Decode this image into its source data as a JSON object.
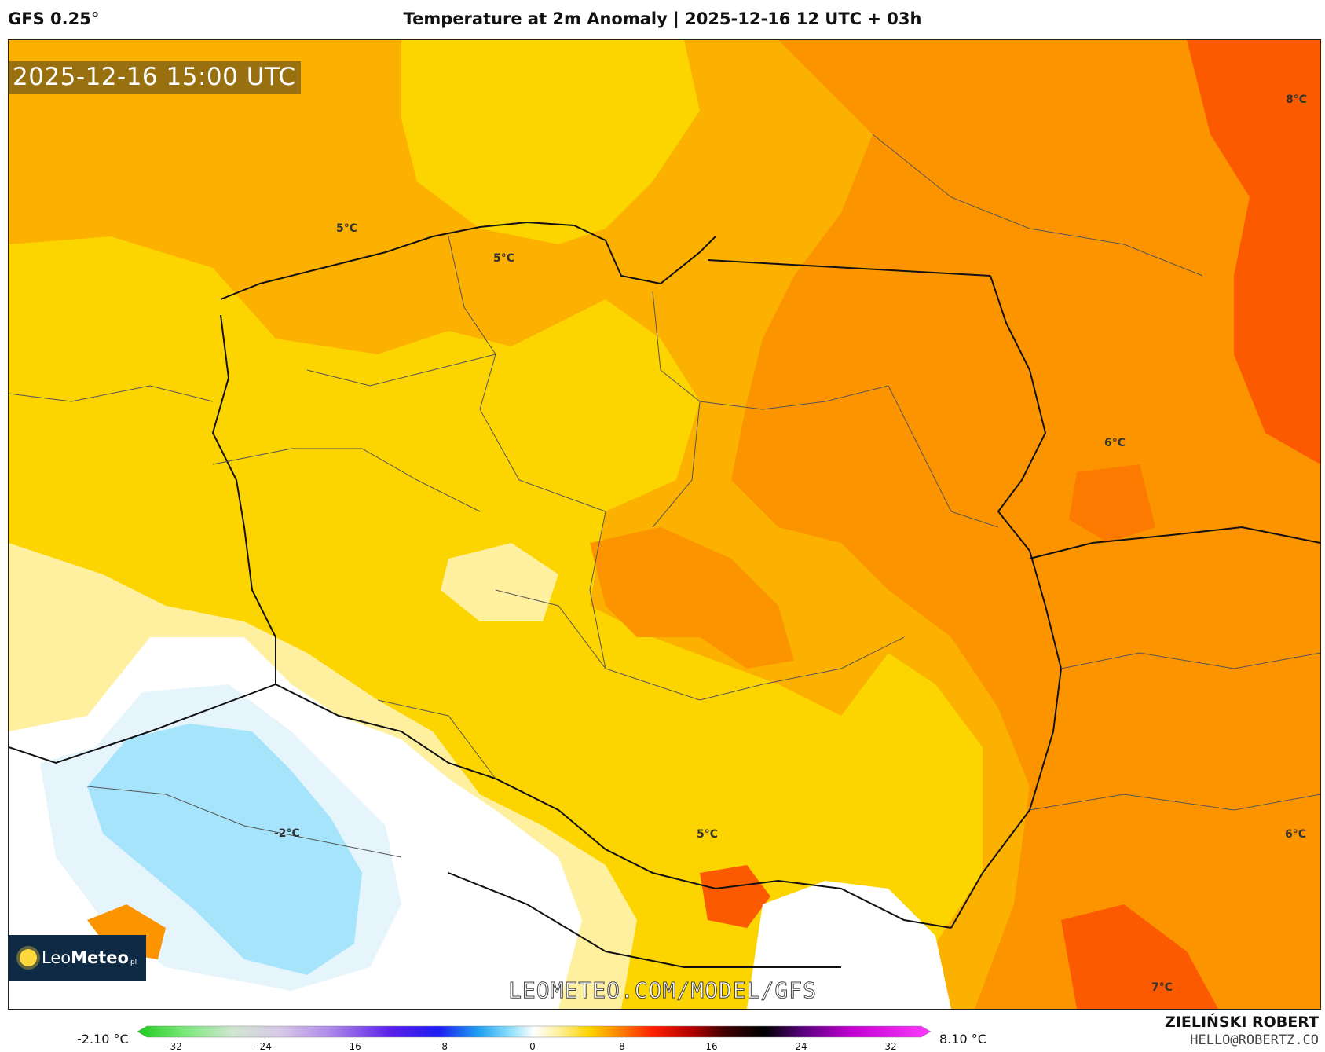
{
  "header": {
    "model": "GFS 0.25°",
    "title": "Temperature at 2m Anomaly | 2025-12-16 12 UTC + 03h"
  },
  "map": {
    "valid_time": "2025-12-16 15:00 UTC",
    "watermark": "LEOMETEO.COM/MODEL/GFS",
    "logo": {
      "name_light": "Leo",
      "name_bold": "Meteo",
      "suffix": "pl"
    },
    "contour_labels": [
      "5°C",
      "5°C",
      "8°C",
      "6°C",
      "-2°C",
      "5°C",
      "6°C",
      "7°C"
    ]
  },
  "legend": {
    "min_label": "-2.10 °C",
    "max_label": "8.10 °C",
    "ticks": [
      "-32",
      "-24",
      "-16",
      "-8",
      "0",
      "8",
      "16",
      "24",
      "32"
    ]
  },
  "credit": {
    "name": "ZIELIŃSKI ROBERT",
    "email": "HELLO@ROBERTZ.CO"
  },
  "colors": {
    "deep_orange": "#fc5a00",
    "orange": "#fc9400",
    "amber": "#fcb000",
    "yellow": "#fcd400",
    "light_yellow": "#fff0a0",
    "white": "#ffffff",
    "pale_blue": "#e6f4fc",
    "light_blue": "#a6e4fc"
  }
}
